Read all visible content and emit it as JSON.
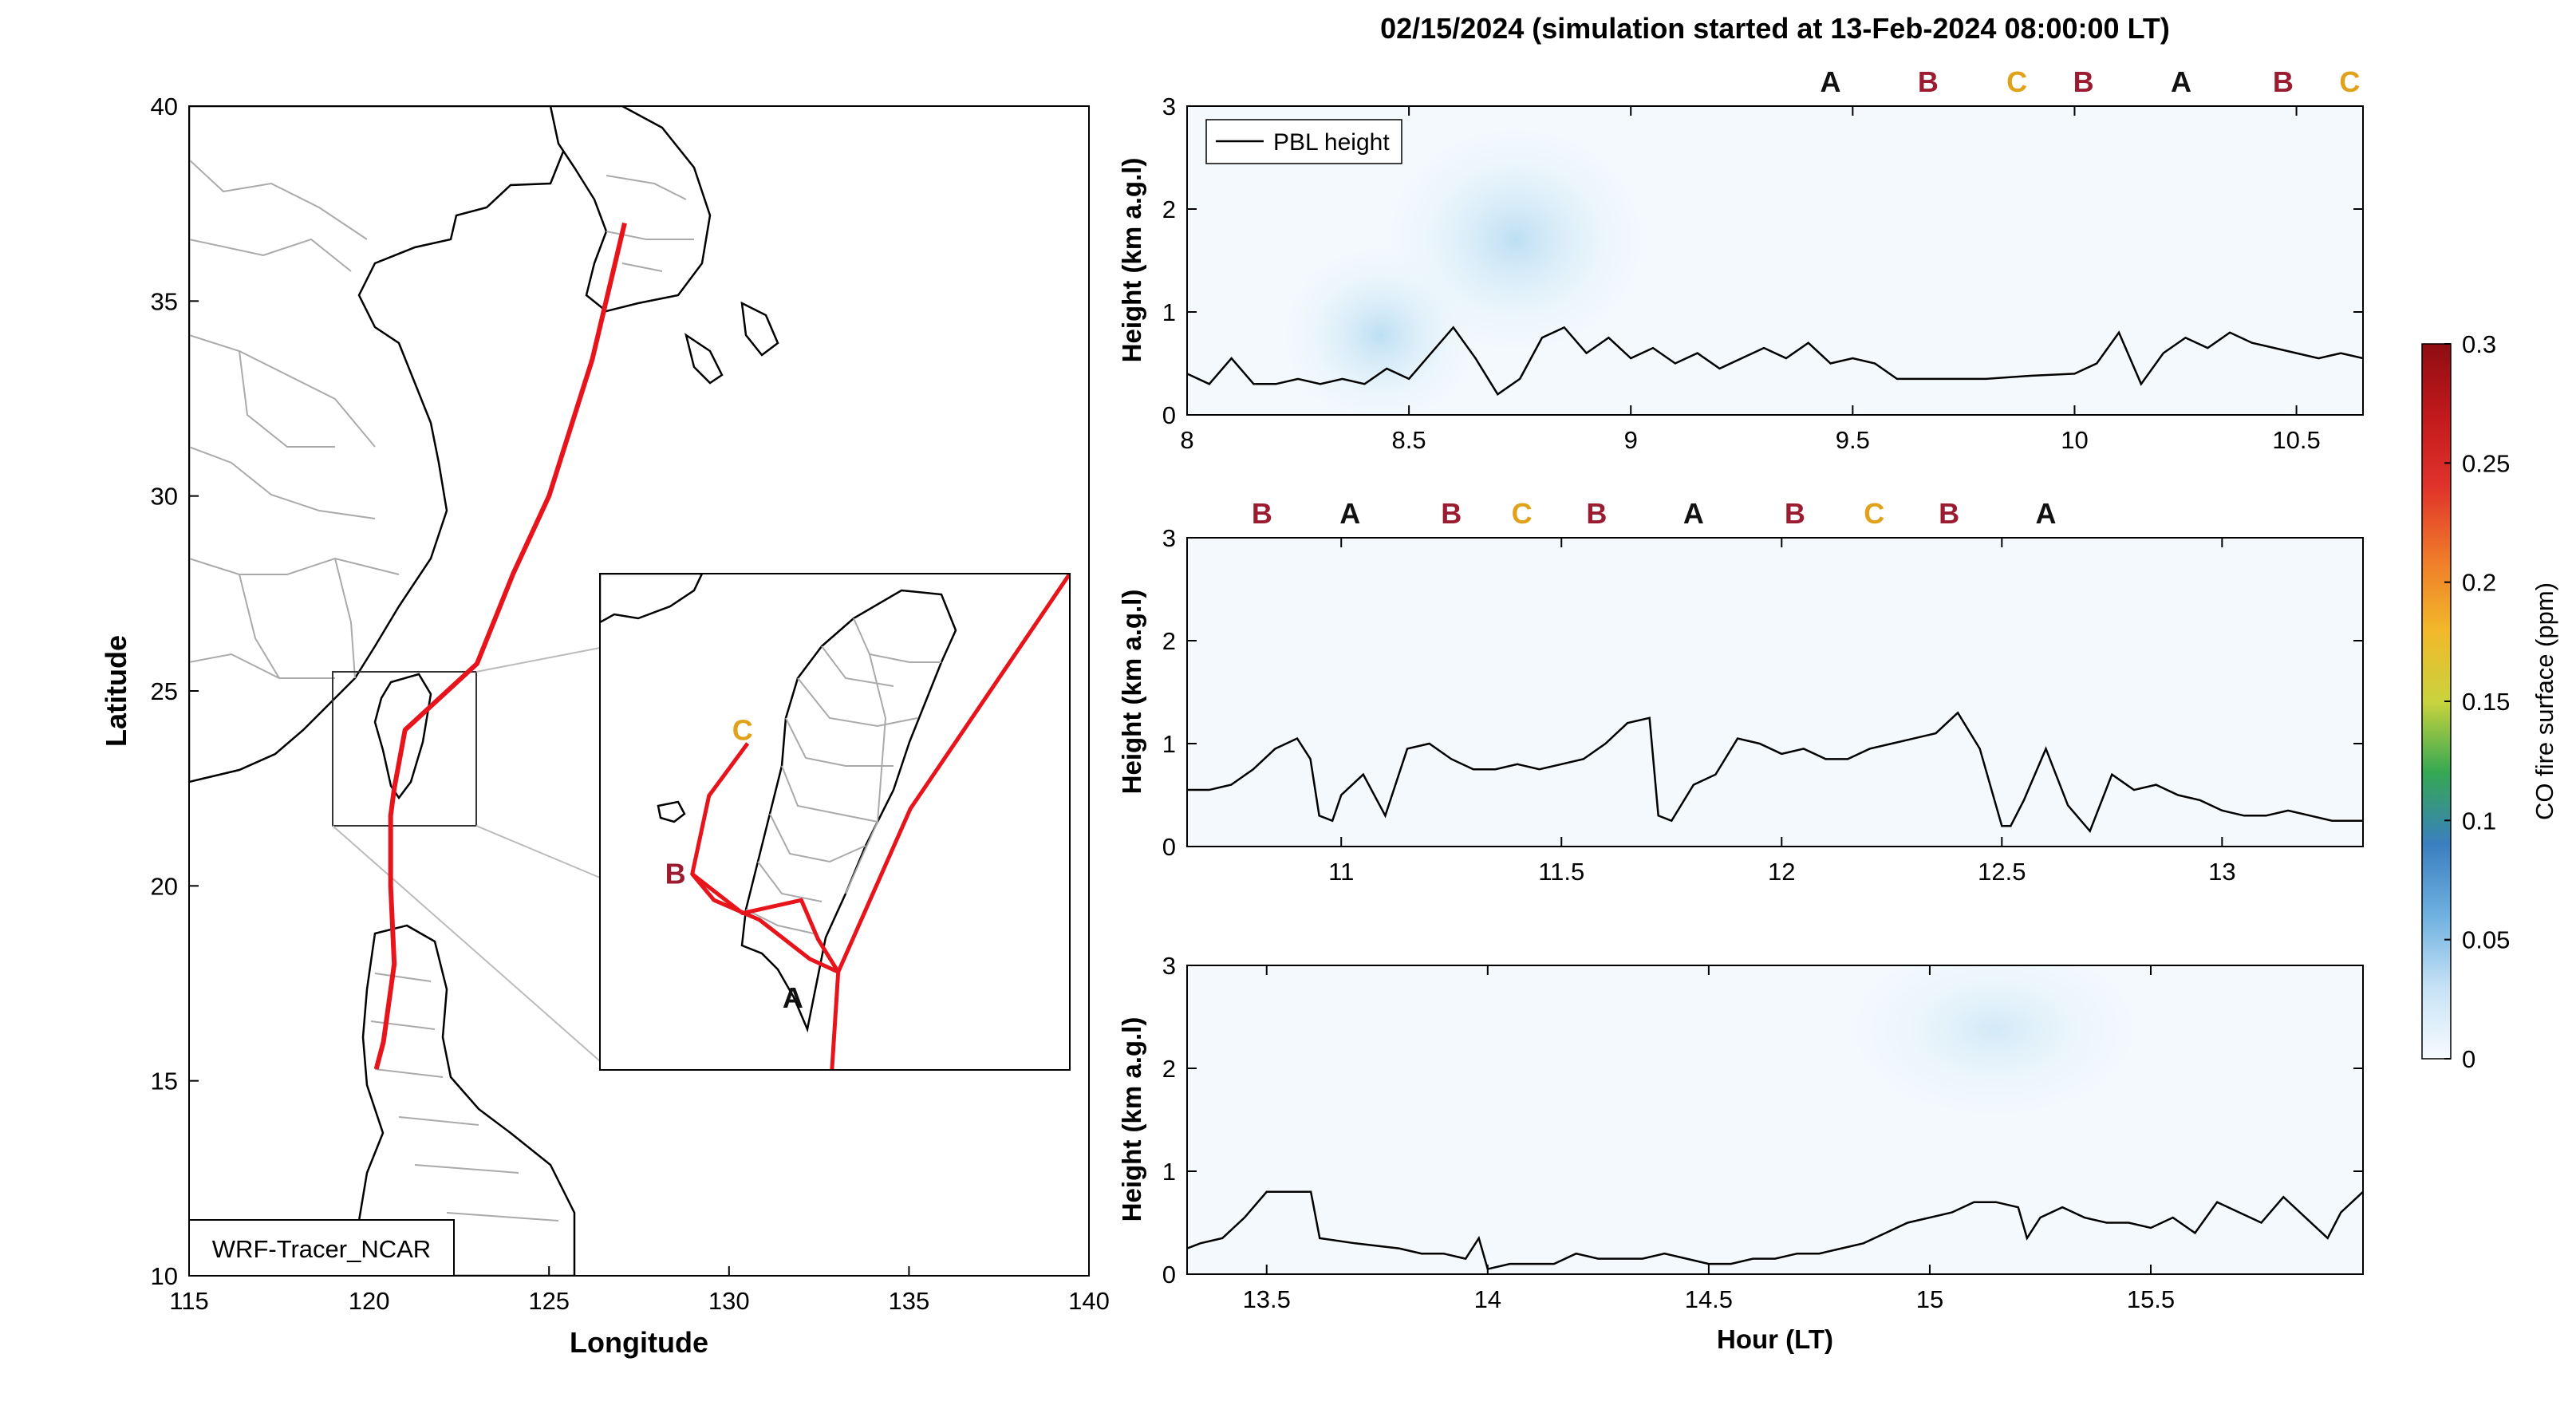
{
  "figure": {
    "title": "02/15/2024 (simulation started at 13-Feb-2024 08:00:00 LT)"
  },
  "colors": {
    "track": "#e8141c",
    "label_A": "#111111",
    "label_B": "#9b1b30",
    "label_C": "#e0a21a",
    "pbl_line": "#000000",
    "pale_field": "#cfe8f7",
    "land_border": "#000000",
    "province_border": "#aaaaaa"
  },
  "chart_data": [
    {
      "type": "line",
      "panel": "map",
      "xlabel": "Longitude",
      "ylabel": "Latitude",
      "xlim": [
        115,
        140
      ],
      "ylim": [
        10,
        40
      ],
      "xticks": [
        115,
        120,
        125,
        130,
        135,
        140
      ],
      "yticks": [
        10,
        15,
        20,
        25,
        30,
        35,
        40
      ],
      "source_label": "WRF-Tracer_NCAR",
      "track": {
        "x": [
          127.1,
          126.2,
          125.0,
          124.0,
          123.0,
          121.0,
          120.7,
          120.6,
          120.6,
          120.7,
          120.4,
          120.2
        ],
        "y": [
          37.0,
          33.5,
          30.0,
          28.0,
          25.7,
          24.0,
          22.5,
          21.8,
          20.0,
          18.0,
          16.0,
          15.3
        ]
      },
      "inset": {
        "xlim": [
          119.6,
          122.4
        ],
        "ylim": [
          21.6,
          25.4
        ],
        "labels": [
          {
            "text": "A",
            "lon": 120.75,
            "lat": 22.15
          },
          {
            "text": "B",
            "lon": 120.05,
            "lat": 23.1
          },
          {
            "text": "C",
            "lon": 120.45,
            "lat": 24.2
          }
        ],
        "tracks": [
          {
            "x": [
              122.4,
              121.45,
              121.02,
              120.98
            ],
            "y": [
              25.4,
              23.6,
              22.35,
              21.55
            ]
          },
          {
            "x": [
              120.48,
              120.25,
              120.15,
              120.28,
              120.55,
              120.85,
              121.02
            ],
            "y": [
              24.1,
              23.7,
              23.1,
              22.9,
              22.75,
              22.45,
              22.35
            ]
          },
          {
            "x": [
              120.15,
              120.45,
              120.8,
              120.9,
              121.02
            ],
            "y": [
              23.1,
              22.8,
              22.9,
              22.6,
              22.35
            ]
          }
        ]
      }
    },
    {
      "type": "line",
      "panel": "profile-1",
      "ylabel": "Height (km a.g.l)",
      "xlim": [
        8,
        10.65
      ],
      "ylim": [
        0,
        3
      ],
      "xticks": [
        8,
        8.5,
        9,
        9.5,
        10,
        10.5
      ],
      "yticks": [
        0,
        1,
        2,
        3
      ],
      "legend": "PBL height",
      "top_labels": [
        "A",
        "B",
        "C",
        "B",
        "A",
        "B",
        "C"
      ],
      "top_label_x": [
        9.45,
        9.67,
        9.87,
        10.02,
        10.24,
        10.47,
        10.62
      ],
      "series": [
        {
          "name": "PBL height",
          "x": [
            8.0,
            8.05,
            8.1,
            8.15,
            8.2,
            8.25,
            8.3,
            8.35,
            8.4,
            8.45,
            8.5,
            8.55,
            8.6,
            8.65,
            8.7,
            8.75,
            8.8,
            8.85,
            8.9,
            8.95,
            9.0,
            9.05,
            9.1,
            9.15,
            9.2,
            9.25,
            9.3,
            9.35,
            9.4,
            9.45,
            9.5,
            9.55,
            9.6,
            9.7,
            9.8,
            9.9,
            10.0,
            10.05,
            10.1,
            10.15,
            10.2,
            10.25,
            10.3,
            10.35,
            10.4,
            10.45,
            10.5,
            10.55,
            10.6,
            10.65
          ],
          "y": [
            0.4,
            0.3,
            0.55,
            0.3,
            0.3,
            0.35,
            0.3,
            0.35,
            0.3,
            0.45,
            0.35,
            0.6,
            0.85,
            0.55,
            0.2,
            0.35,
            0.75,
            0.85,
            0.6,
            0.75,
            0.55,
            0.65,
            0.5,
            0.6,
            0.45,
            0.55,
            0.65,
            0.55,
            0.7,
            0.5,
            0.55,
            0.5,
            0.35,
            0.35,
            0.35,
            0.38,
            0.4,
            0.5,
            0.8,
            0.3,
            0.6,
            0.75,
            0.65,
            0.8,
            0.7,
            0.65,
            0.6,
            0.55,
            0.6,
            0.55
          ]
        }
      ]
    },
    {
      "type": "line",
      "panel": "profile-2",
      "ylabel": "Height (km a.g.l)",
      "xlim": [
        10.65,
        13.32
      ],
      "ylim": [
        0,
        3
      ],
      "xticks": [
        11,
        11.5,
        12,
        12.5,
        13
      ],
      "yticks": [
        0,
        1,
        2,
        3
      ],
      "top_labels": [
        "B",
        "A",
        "B",
        "C",
        "B",
        "A",
        "B",
        "C",
        "B",
        "A"
      ],
      "top_label_x": [
        10.82,
        11.02,
        11.25,
        11.41,
        11.58,
        11.8,
        12.03,
        12.21,
        12.38,
        12.6
      ],
      "series": [
        {
          "name": "PBL height",
          "x": [
            10.65,
            10.7,
            10.75,
            10.8,
            10.85,
            10.9,
            10.93,
            10.95,
            10.98,
            11.0,
            11.05,
            11.1,
            11.15,
            11.2,
            11.25,
            11.3,
            11.35,
            11.4,
            11.45,
            11.5,
            11.55,
            11.6,
            11.65,
            11.7,
            11.72,
            11.75,
            11.8,
            11.85,
            11.9,
            11.95,
            12.0,
            12.05,
            12.1,
            12.15,
            12.2,
            12.25,
            12.3,
            12.35,
            12.4,
            12.45,
            12.5,
            12.52,
            12.55,
            12.6,
            12.65,
            12.7,
            12.75,
            12.8,
            12.85,
            12.9,
            12.95,
            13.0,
            13.05,
            13.1,
            13.15,
            13.2,
            13.25,
            13.32
          ],
          "y": [
            0.55,
            0.55,
            0.6,
            0.75,
            0.95,
            1.05,
            0.85,
            0.3,
            0.25,
            0.5,
            0.7,
            0.3,
            0.95,
            1.0,
            0.85,
            0.75,
            0.75,
            0.8,
            0.75,
            0.8,
            0.85,
            1.0,
            1.2,
            1.25,
            0.3,
            0.25,
            0.6,
            0.7,
            1.05,
            1.0,
            0.9,
            0.95,
            0.85,
            0.85,
            0.95,
            1.0,
            1.05,
            1.1,
            1.3,
            0.95,
            0.2,
            0.2,
            0.45,
            0.95,
            0.4,
            0.15,
            0.7,
            0.55,
            0.6,
            0.5,
            0.45,
            0.35,
            0.3,
            0.3,
            0.35,
            0.3,
            0.25,
            0.25
          ]
        }
      ]
    },
    {
      "type": "line",
      "panel": "profile-3",
      "ylabel": "Height (km a.g.l)",
      "xlabel": "Hour (LT)",
      "xlim": [
        13.32,
        15.98
      ],
      "ylim": [
        0,
        3
      ],
      "xticks": [
        13.5,
        14,
        14.5,
        15,
        15.5
      ],
      "yticks": [
        0,
        1,
        2,
        3
      ],
      "series": [
        {
          "name": "PBL height",
          "x": [
            13.32,
            13.35,
            13.4,
            13.45,
            13.5,
            13.55,
            13.6,
            13.62,
            13.7,
            13.8,
            13.85,
            13.9,
            13.95,
            13.98,
            14.0,
            14.05,
            14.1,
            14.15,
            14.2,
            14.25,
            14.3,
            14.35,
            14.4,
            14.45,
            14.5,
            14.55,
            14.6,
            14.65,
            14.7,
            14.75,
            14.8,
            14.85,
            14.9,
            14.95,
            15.0,
            15.05,
            15.1,
            15.15,
            15.2,
            15.22,
            15.25,
            15.3,
            15.35,
            15.4,
            15.45,
            15.5,
            15.55,
            15.6,
            15.65,
            15.7,
            15.75,
            15.8,
            15.85,
            15.9,
            15.93,
            15.98
          ],
          "y": [
            0.25,
            0.3,
            0.35,
            0.55,
            0.8,
            0.8,
            0.8,
            0.35,
            0.3,
            0.25,
            0.2,
            0.2,
            0.15,
            0.35,
            0.05,
            0.1,
            0.1,
            0.1,
            0.2,
            0.15,
            0.15,
            0.15,
            0.2,
            0.15,
            0.1,
            0.1,
            0.15,
            0.15,
            0.2,
            0.2,
            0.25,
            0.3,
            0.4,
            0.5,
            0.55,
            0.6,
            0.7,
            0.7,
            0.65,
            0.35,
            0.55,
            0.65,
            0.55,
            0.5,
            0.5,
            0.45,
            0.55,
            0.4,
            0.7,
            0.6,
            0.5,
            0.75,
            0.55,
            0.35,
            0.6,
            0.8
          ]
        }
      ]
    },
    {
      "type": "colorbar",
      "panel": "colorbar",
      "label": "CO fire surface (ppm)",
      "range": [
        0,
        0.3
      ],
      "ticks": [
        0,
        0.05,
        0.1,
        0.15,
        0.2,
        0.25,
        0.3
      ],
      "colors": [
        "#f7fbff",
        "#c6e2f5",
        "#6fb1e0",
        "#3a7fc0",
        "#34a853",
        "#c9d33d",
        "#f2b82a",
        "#ef7a2a",
        "#e0332a",
        "#c1191c",
        "#8e0d12"
      ]
    }
  ]
}
